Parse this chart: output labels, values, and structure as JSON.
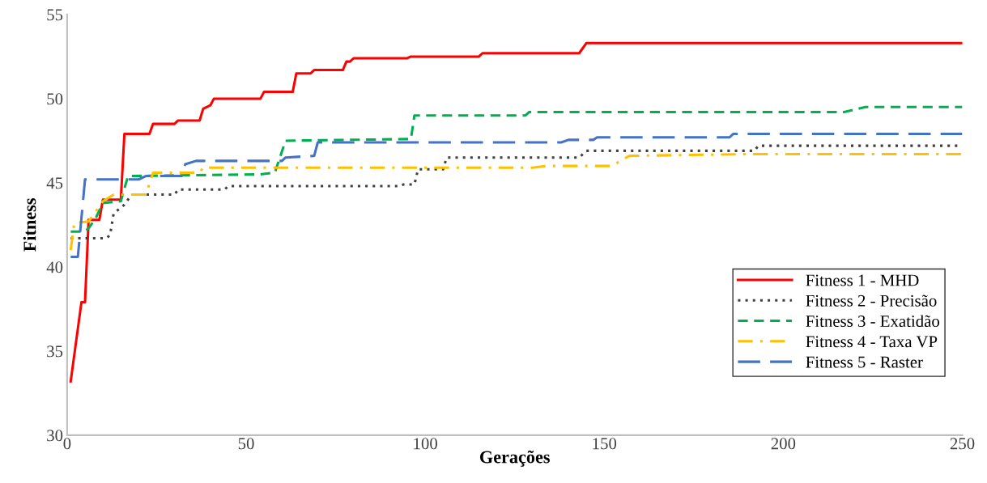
{
  "chart_data": {
    "type": "line",
    "xlabel": "Gerações",
    "ylabel": "Fitness",
    "xlim": [
      0,
      250
    ],
    "xticks": [
      0,
      50,
      100,
      150,
      200,
      250
    ],
    "ylim": [
      30,
      55
    ],
    "yticks": [
      30,
      35,
      40,
      45,
      50,
      55
    ],
    "grid": false,
    "legend": "lower right",
    "marker": "none",
    "series": [
      {
        "name": "Fitness 1 - MHD",
        "color": "#ff0000",
        "line_style": "solid",
        "x": [
          1,
          4,
          5,
          6,
          9,
          10,
          15,
          16,
          23,
          24,
          30,
          31,
          37,
          38,
          40,
          41,
          54,
          55,
          63,
          64,
          68,
          69,
          77,
          78,
          79,
          80,
          95,
          96,
          115,
          116,
          143,
          145,
          250
        ],
        "values": [
          33.2,
          37.9,
          37.9,
          42.8,
          42.8,
          44.0,
          44.0,
          47.9,
          47.9,
          48.5,
          48.5,
          48.7,
          48.7,
          49.4,
          49.6,
          50.0,
          50.0,
          50.4,
          50.4,
          51.5,
          51.5,
          51.7,
          51.7,
          52.2,
          52.2,
          52.4,
          52.4,
          52.5,
          52.5,
          52.7,
          52.7,
          53.3,
          53.3
        ]
      },
      {
        "name": "Fitness 2 - Precisão",
        "color": "#404040",
        "line_style": "dotted",
        "x": [
          1,
          11,
          12,
          13,
          15,
          16,
          18,
          30,
          31,
          44,
          45,
          93,
          94,
          97,
          98,
          105,
          106,
          143,
          145,
          192,
          193,
          250
        ],
        "values": [
          41.7,
          41.7,
          41.9,
          43.2,
          43.5,
          43.7,
          44.3,
          44.3,
          44.6,
          44.6,
          44.8,
          44.8,
          44.9,
          44.9,
          45.8,
          45.8,
          46.5,
          46.5,
          46.9,
          46.9,
          47.2,
          47.2
        ]
      },
      {
        "name": "Fitness 3 - Exatidão",
        "color": "#00b050",
        "line_style": "dashed",
        "x": [
          1,
          5,
          6,
          8,
          10,
          15,
          17,
          54,
          58,
          61,
          96,
          97,
          128,
          129,
          217,
          223,
          250
        ],
        "values": [
          42.1,
          42.1,
          42.3,
          42.9,
          43.8,
          43.9,
          45.4,
          45.5,
          45.6,
          47.5,
          47.6,
          49.0,
          49.0,
          49.2,
          49.2,
          49.5,
          49.5
        ]
      },
      {
        "name": "Fitness 4 - Taxa VP",
        "color": "#ffc000",
        "line_style": "dashdot",
        "x": [
          1,
          2,
          6,
          8,
          10,
          13,
          22,
          24,
          37,
          38,
          130,
          134,
          152,
          157,
          190,
          250
        ],
        "values": [
          41.0,
          42.6,
          42.7,
          43.3,
          43.9,
          44.3,
          44.3,
          45.6,
          45.6,
          45.9,
          45.9,
          46.0,
          46.0,
          46.6,
          46.7,
          46.7
        ]
      },
      {
        "name": "Fitness 5 - Raster",
        "color": "#4472c4",
        "line_style": "longdash",
        "x": [
          1,
          3,
          5,
          20,
          22,
          32,
          33,
          36,
          60,
          61,
          69,
          70,
          138,
          140,
          147,
          148,
          185,
          186,
          250
        ],
        "values": [
          40.6,
          40.6,
          45.2,
          45.2,
          45.4,
          45.4,
          46.1,
          46.3,
          46.3,
          46.5,
          46.6,
          47.4,
          47.4,
          47.55,
          47.55,
          47.7,
          47.7,
          47.9,
          47.9
        ]
      }
    ]
  }
}
